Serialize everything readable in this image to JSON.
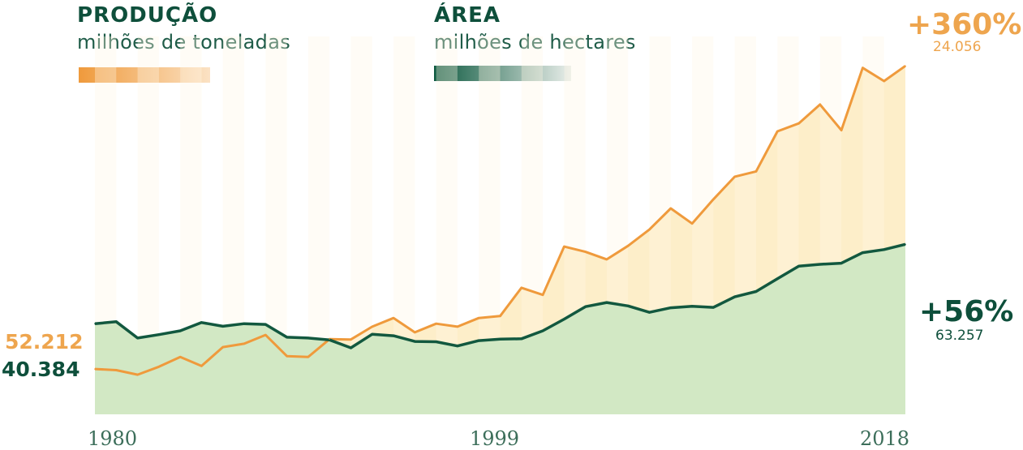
{
  "legend": {
    "production": {
      "title": "PRODUÇÃO",
      "unit": "milhões de toneladas"
    },
    "area": {
      "title": "ÁREA",
      "unit": "milhões de hectares"
    }
  },
  "annotations": {
    "production_growth": "+360%",
    "production_end_value": "24.056",
    "area_growth": "+56%",
    "area_end_value": "63.257",
    "production_start_value": "52.212",
    "area_start_value": "40.384"
  },
  "x_ticks": [
    "1980",
    "1999",
    "2018"
  ],
  "colors": {
    "production": "#ef9a3c",
    "production_fill": "#fdeec9",
    "area": "#12583f",
    "area_fill": "#d2e8c4",
    "dark_text": "#0e4f3b",
    "orange_text": "#eea54e"
  },
  "chart_data": {
    "type": "area",
    "x": [
      1980,
      1981,
      1982,
      1983,
      1984,
      1985,
      1986,
      1987,
      1988,
      1989,
      1990,
      1991,
      1992,
      1993,
      1994,
      1995,
      1996,
      1997,
      1998,
      1999,
      2000,
      2001,
      2002,
      2003,
      2004,
      2005,
      2006,
      2007,
      2008,
      2009,
      2010,
      2011,
      2012,
      2013,
      2014,
      2015,
      2016,
      2017,
      2018
    ],
    "series": [
      {
        "name": "PRODUÇÃO",
        "y_axis": "relative",
        "values": [
          12.0,
          11.7,
          10.5,
          12.6,
          15.2,
          12.8,
          17.8,
          18.7,
          21.0,
          15.4,
          15.2,
          19.9,
          19.8,
          23.2,
          25.5,
          21.7,
          24.0,
          23.2,
          25.5,
          26.0,
          33.5,
          31.6,
          44.4,
          43.0,
          41.0,
          44.6,
          48.9,
          54.5,
          50.5,
          56.9,
          62.9,
          64.3,
          74.9,
          77.0,
          82.0,
          75.2,
          91.7,
          88.2,
          92.2
        ]
      },
      {
        "name": "ÁREA",
        "y_axis": "relative",
        "values": [
          24.0,
          24.5,
          20.2,
          21.1,
          22.1,
          24.3,
          23.3,
          24.0,
          23.8,
          20.4,
          20.2,
          19.7,
          17.6,
          21.2,
          20.8,
          19.3,
          19.2,
          18.1,
          19.5,
          19.9,
          20.0,
          22.1,
          25.2,
          28.5,
          29.6,
          28.7,
          27.0,
          28.2,
          28.6,
          28.3,
          31.1,
          32.5,
          35.9,
          39.2,
          39.7,
          40.0,
          42.8,
          43.6,
          45.0
        ]
      }
    ],
    "xlim": [
      1980,
      2018
    ],
    "ylim": [
      0,
      100
    ],
    "grid": false,
    "legend_position": "top-left"
  }
}
